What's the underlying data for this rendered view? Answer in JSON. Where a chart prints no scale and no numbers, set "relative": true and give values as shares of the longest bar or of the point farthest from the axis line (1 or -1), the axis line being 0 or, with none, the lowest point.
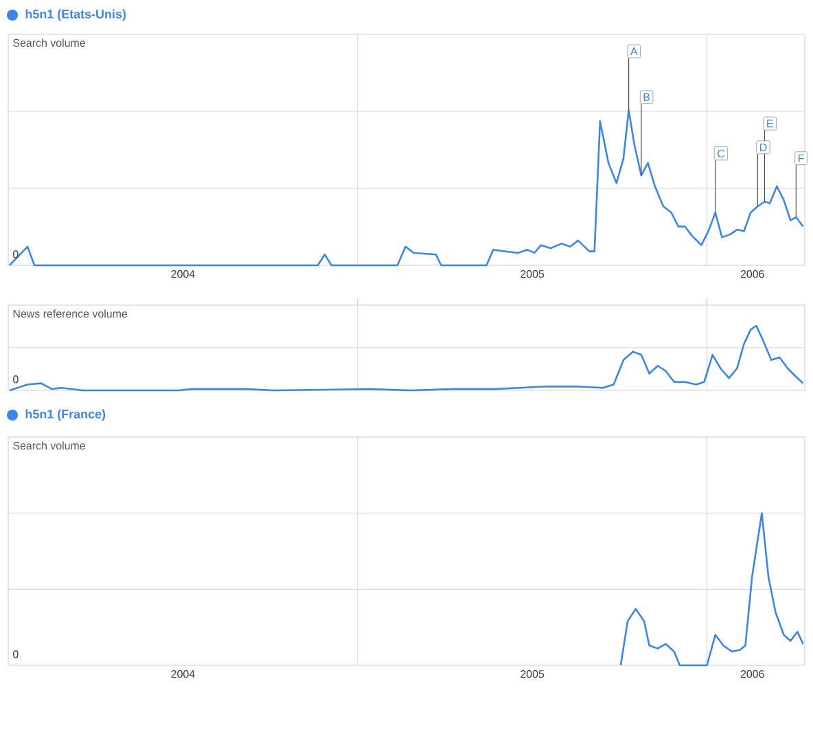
{
  "chart_data": [
    {
      "type": "line",
      "title": "h5n1  (Etats-Unis)",
      "ylabel": "Search volume",
      "relative": true,
      "grid": true,
      "xlim": [
        2004.0,
        2006.28
      ],
      "xticks": [
        {
          "value": 2004.5,
          "label": "2004"
        },
        {
          "value": 2005,
          "label": null
        },
        {
          "value": 2005.5,
          "label": "2005"
        },
        {
          "value": 2006,
          "label": null
        },
        {
          "value": 2006.13,
          "label": "2006"
        }
      ],
      "series": [
        {
          "color": "#3d85e6",
          "x": [
            2004.004,
            2004.055,
            2004.075,
            2004.886,
            2004.906,
            2004.925,
            2005.114,
            2005.137,
            2005.161,
            2005.224,
            2005.239,
            2005.369,
            2005.388,
            2005.459,
            2005.486,
            2005.506,
            2005.525,
            2005.553,
            2005.584,
            2005.608,
            2005.631,
            2005.663,
            2005.678,
            2005.694,
            2005.718,
            2005.741,
            2005.761,
            2005.776,
            2005.792,
            2005.812,
            2005.831,
            2005.851,
            2005.875,
            2005.898,
            2005.918,
            2005.937,
            2005.957,
            2005.984,
            2006.004,
            2006.024,
            2006.043,
            2006.067,
            2006.086,
            2006.106,
            2006.125,
            2006.145,
            2006.165,
            2006.18,
            2006.2,
            2006.22,
            2006.239,
            2006.255,
            2006.275
          ],
          "values": [
            0,
            0.12,
            0,
            0,
            0.07,
            0,
            0,
            0.12,
            0.08,
            0.07,
            0,
            0,
            0.1,
            0.08,
            0.1,
            0.08,
            0.13,
            0.11,
            0.14,
            0.12,
            0.16,
            0.09,
            0.09,
            0.93,
            0.66,
            0.53,
            0.69,
            1,
            0.78,
            0.58,
            0.66,
            0.51,
            0.38,
            0.34,
            0.25,
            0.25,
            0.19,
            0.13,
            0.22,
            0.34,
            0.18,
            0.2,
            0.23,
            0.22,
            0.34,
            0.38,
            0.41,
            0.4,
            0.51,
            0.42,
            0.29,
            0.31,
            0.25
          ]
        }
      ],
      "annotations": [
        "0",
        {
          "text": "A",
          "x": 2005.776,
          "y": 1
        },
        {
          "text": "B",
          "x": 2005.812,
          "y": 0.58
        },
        {
          "text": "C",
          "x": 2006.024,
          "y": 0.34
        },
        {
          "text": "D",
          "x": 2006.145,
          "y": 0.38
        },
        {
          "text": "E",
          "x": 2006.165,
          "y": 0.41
        },
        {
          "text": "F",
          "x": 2006.255,
          "y": 0.31
        }
      ]
    },
    {
      "type": "line",
      "ylabel": "News reference volume",
      "relative": true,
      "grid": true,
      "tick_labels": false,
      "xlim": [
        2004.0,
        2006.28
      ],
      "xticks": [
        {
          "value": 2005,
          "label": null
        },
        {
          "value": 2006,
          "label": null
        }
      ],
      "series": [
        {
          "color": "#3d85e6",
          "x": [
            2004.004,
            2004.055,
            2004.094,
            2004.125,
            2004.153,
            2004.212,
            2004.486,
            2004.525,
            2004.682,
            2004.761,
            2005.035,
            2005.153,
            2005.271,
            2005.388,
            2005.467,
            2005.545,
            2005.624,
            2005.702,
            2005.733,
            2005.761,
            2005.788,
            2005.812,
            2005.835,
            2005.859,
            2005.882,
            2005.906,
            2005.937,
            2005.969,
            2005.992,
            2006.016,
            2006.039,
            2006.063,
            2006.086,
            2006.106,
            2006.125,
            2006.141,
            2006.161,
            2006.184,
            2006.208,
            2006.231,
            2006.255,
            2006.275
          ],
          "values": [
            0,
            0.09,
            0.11,
            0.02,
            0.04,
            0,
            0,
            0.02,
            0.02,
            0,
            0.02,
            0,
            0.02,
            0.02,
            0.04,
            0.06,
            0.06,
            0.04,
            0.09,
            0.47,
            0.6,
            0.55,
            0.26,
            0.38,
            0.3,
            0.13,
            0.13,
            0.09,
            0.13,
            0.55,
            0.34,
            0.19,
            0.34,
            0.72,
            0.94,
            1,
            0.77,
            0.47,
            0.51,
            0.34,
            0.21,
            0.11
          ]
        }
      ],
      "annotations": [
        "0"
      ]
    },
    {
      "type": "line",
      "title": "h5n1  (France)",
      "ylabel": "Search volume",
      "relative": true,
      "grid": true,
      "xlim": [
        2004.0,
        2006.28
      ],
      "xticks": [
        {
          "value": 2004.5,
          "label": "2004"
        },
        {
          "value": 2005,
          "label": null
        },
        {
          "value": 2005.5,
          "label": "2005"
        },
        {
          "value": 2006,
          "label": null
        },
        {
          "value": 2006.13,
          "label": "2006"
        }
      ],
      "series": [
        {
          "color": "#3d85e6",
          "x": [
            2005.753,
            2005.773,
            2005.796,
            2005.82,
            2005.835,
            2005.859,
            2005.882,
            2005.906,
            2005.922,
            2006.0,
            2006.024,
            2006.047,
            2006.071,
            2006.094,
            2006.11,
            2006.129,
            2006.157,
            2006.176,
            2006.196,
            2006.22,
            2006.239,
            2006.259,
            2006.275
          ],
          "values": [
            0,
            0.29,
            0.37,
            0.29,
            0.13,
            0.11,
            0.14,
            0.09,
            0,
            0,
            0.2,
            0.13,
            0.09,
            0.1,
            0.13,
            0.58,
            1,
            0.58,
            0.35,
            0.2,
            0.16,
            0.22,
            0.14
          ]
        }
      ],
      "annotations": [
        "0"
      ]
    }
  ]
}
